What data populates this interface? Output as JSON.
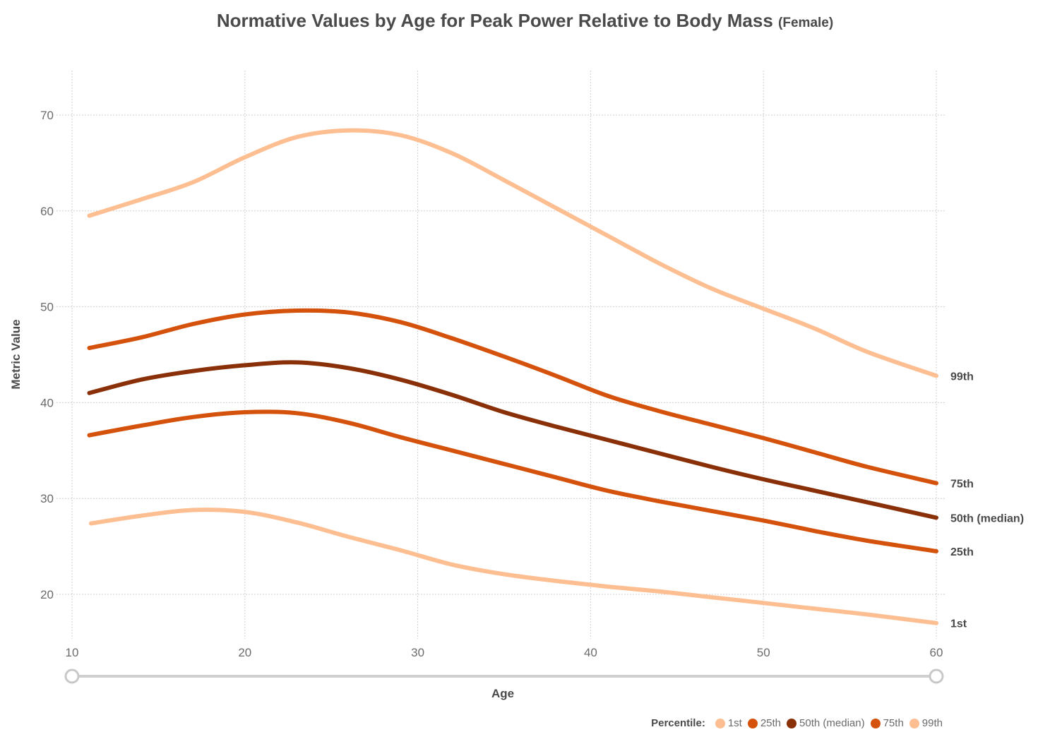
{
  "chart_data": {
    "type": "line",
    "title": "Normative Values by Age for Peak Power Relative to Body Mass",
    "subtitle": "(Female)",
    "xlabel": "Age",
    "ylabel": "Metric Value",
    "xlim": [
      10,
      60
    ],
    "ylim": [
      15,
      75
    ],
    "xticks": [
      10,
      20,
      30,
      40,
      50,
      60
    ],
    "yticks": [
      20,
      30,
      40,
      50,
      60,
      70
    ],
    "x": [
      11,
      14,
      17,
      20,
      23,
      26,
      29,
      32,
      35,
      38,
      41,
      44,
      47,
      50,
      53,
      56,
      60
    ],
    "series": [
      {
        "name": "1st",
        "end_label": "1st",
        "color": "#fdbe91",
        "start_x": 11.1,
        "values": [
          27.4,
          28.2,
          28.8,
          28.6,
          27.5,
          26.0,
          24.6,
          23.1,
          22.1,
          21.4,
          20.8,
          20.3,
          19.7,
          19.1,
          18.5,
          17.9,
          17.0
        ]
      },
      {
        "name": "25th",
        "end_label": "25th",
        "color": "#d4520c",
        "values": [
          36.6,
          37.6,
          38.5,
          39.0,
          38.9,
          37.9,
          36.4,
          35.0,
          33.6,
          32.2,
          30.8,
          29.7,
          28.7,
          27.7,
          26.6,
          25.6,
          24.5
        ]
      },
      {
        "name": "50th (median)",
        "end_label": "50th (median)",
        "color": "#8a3008",
        "values": [
          41.0,
          42.4,
          43.3,
          43.9,
          44.2,
          43.6,
          42.4,
          40.8,
          39.0,
          37.5,
          36.1,
          34.7,
          33.3,
          32.0,
          30.8,
          29.6,
          28.0
        ]
      },
      {
        "name": "75th",
        "end_label": "75th",
        "color": "#d4520c",
        "values": [
          45.7,
          46.8,
          48.2,
          49.2,
          49.6,
          49.4,
          48.4,
          46.7,
          44.8,
          42.8,
          40.7,
          39.1,
          37.7,
          36.3,
          34.8,
          33.3,
          31.6
        ]
      },
      {
        "name": "99th",
        "end_label": "99th",
        "color": "#fdbe91",
        "values": [
          59.5,
          61.2,
          63.0,
          65.6,
          67.7,
          68.4,
          67.9,
          66.0,
          63.2,
          60.3,
          57.4,
          54.5,
          51.9,
          49.8,
          47.7,
          45.3,
          42.8
        ]
      }
    ],
    "legend": {
      "title": "Percentile:",
      "placement": "bottom-right",
      "items": [
        {
          "label": "1st",
          "color": "#fdbe91"
        },
        {
          "label": "25th",
          "color": "#d4520c"
        },
        {
          "label": "50th (median)",
          "color": "#8a3008"
        },
        {
          "label": "75th",
          "color": "#d4520c"
        },
        {
          "label": "99th",
          "color": "#fdbe91"
        }
      ]
    },
    "range_slider": {
      "min": 10,
      "max": 60
    }
  }
}
